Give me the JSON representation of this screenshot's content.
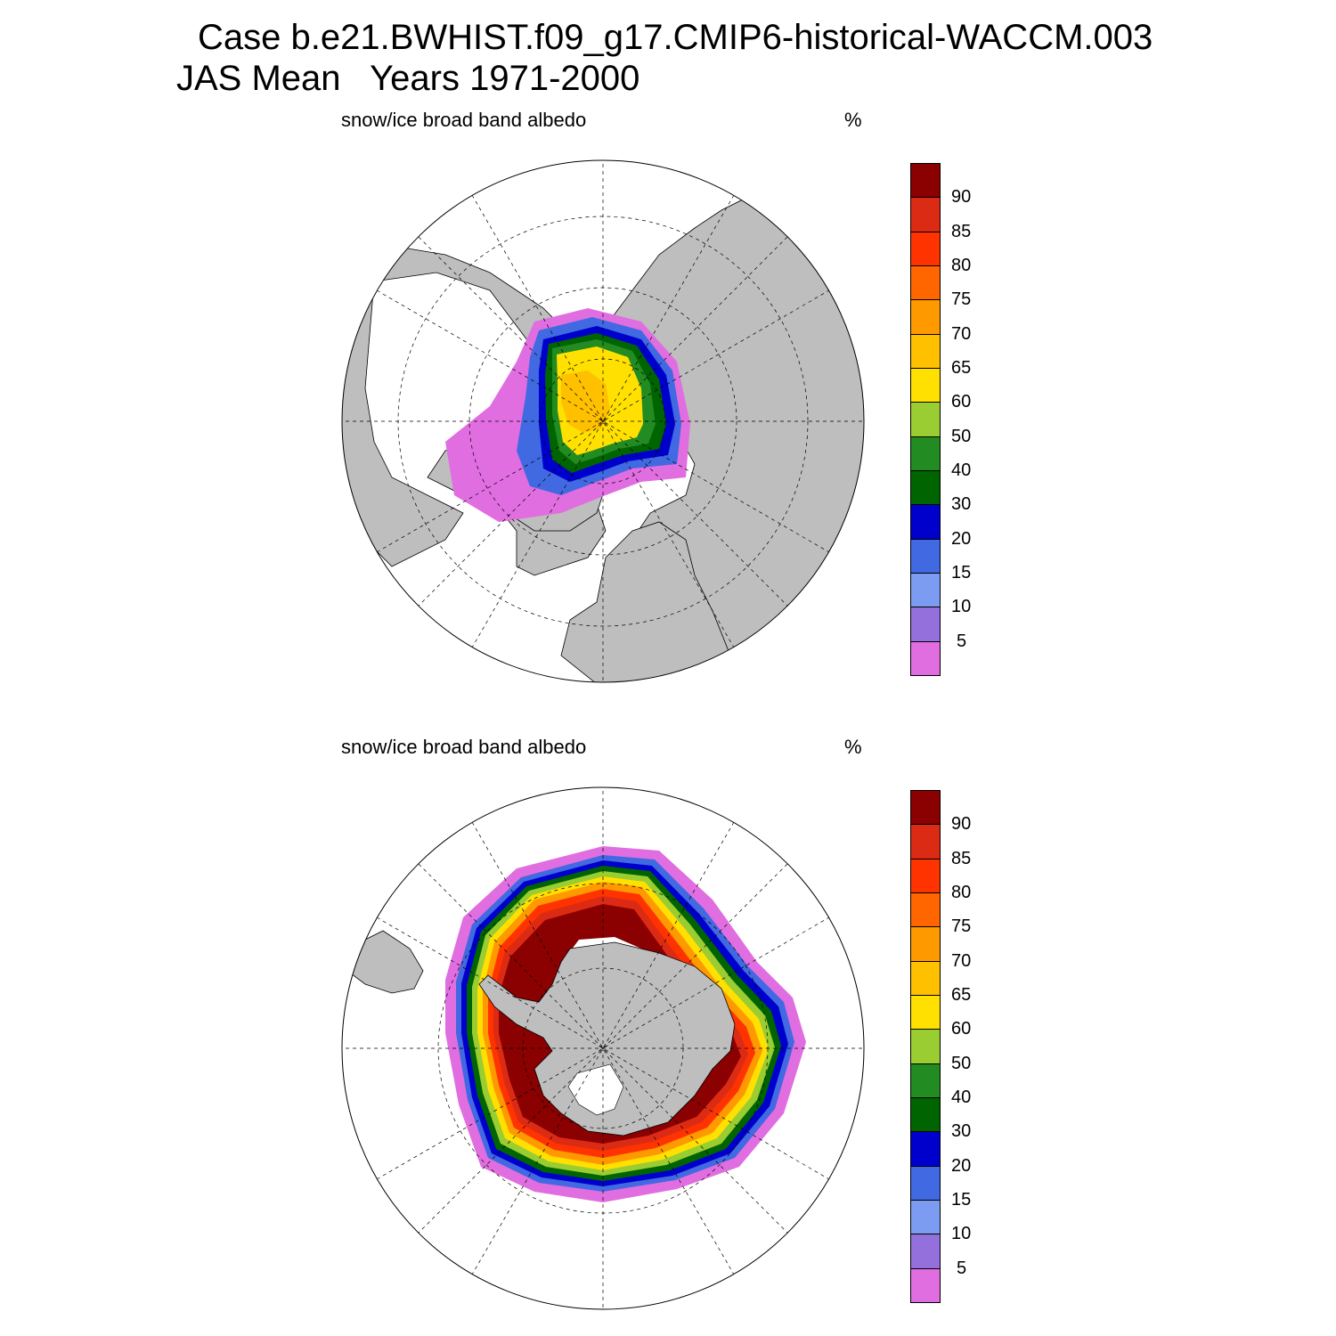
{
  "figure": {
    "title_line1": "Case b.e21.BWHIST.f09_g17.CMIP6-historical-WACCM.003",
    "title_line2": "JAS Mean   Years 1971-2000"
  },
  "panels": [
    {
      "id": "north",
      "field_label": "snow/ice broad band albedo",
      "units_label": "%",
      "hemisphere": "Northern",
      "projection": "polar stereographic"
    },
    {
      "id": "south",
      "field_label": "snow/ice broad band albedo",
      "units_label": "%",
      "hemisphere": "Southern",
      "projection": "polar stereographic"
    }
  ],
  "colorbar": {
    "levels": [
      "5",
      "10",
      "15",
      "20",
      "30",
      "40",
      "50",
      "60",
      "65",
      "70",
      "75",
      "80",
      "85",
      "90"
    ],
    "colors": [
      "#e06ee0",
      "#9370db",
      "#7b9cf0",
      "#4169e1",
      "#0000cd",
      "#006400",
      "#228b22",
      "#9acd32",
      "#ffe000",
      "#ffc000",
      "#ff9900",
      "#ff6600",
      "#ff3300",
      "#dc2b14",
      "#8b0000"
    ],
    "land_color": "#bebebe",
    "no_data_color": "#ffffff"
  },
  "chart_data": [
    {
      "type": "heatmap",
      "title": "snow/ice broad band albedo",
      "units": "%",
      "region": "Arctic",
      "description_values": {
        "central_arctic_range": [
          60,
          70
        ],
        "ice_edge_range": [
          5,
          40
        ]
      }
    },
    {
      "type": "heatmap",
      "title": "snow/ice broad band albedo",
      "units": "%",
      "region": "Antarctic",
      "description_values": {
        "pack_ice_range": [
          85,
          100
        ],
        "ice_edge_range": [
          5,
          40
        ]
      }
    }
  ]
}
